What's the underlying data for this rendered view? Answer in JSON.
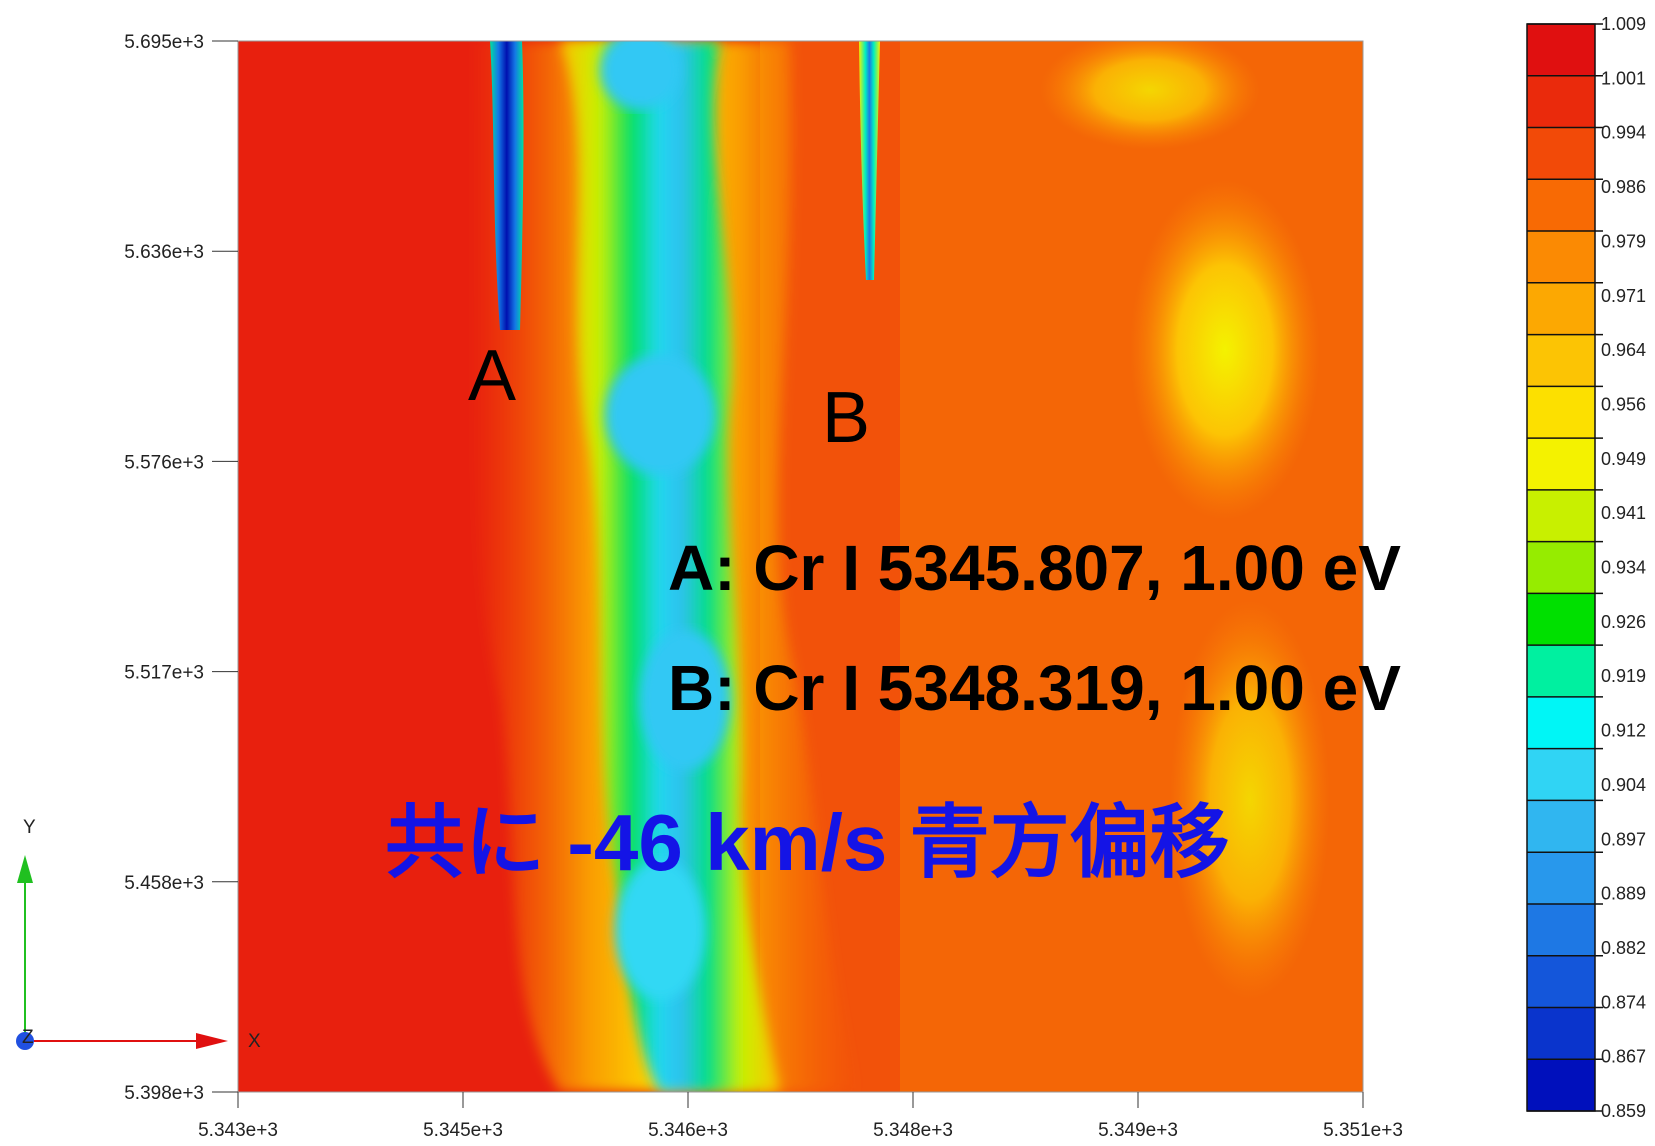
{
  "chart_data": {
    "type": "heatmap",
    "title": "",
    "xlabel": "",
    "ylabel": "",
    "x_ticks": [
      "5.343e+3",
      "5.345e+3",
      "5.346e+3",
      "5.348e+3",
      "5.349e+3",
      "5.351e+3"
    ],
    "y_ticks": [
      "5.695e+3",
      "5.636e+3",
      "5.576e+3",
      "5.517e+3",
      "5.458e+3",
      "5.398e+3"
    ],
    "xlim": [
      5343.0,
      5351.0
    ],
    "ylim": [
      5398.0,
      5695.0
    ],
    "colorbar": {
      "range": [
        0.859,
        1.009
      ],
      "labels": [
        "1.009",
        "1.001",
        "0.994",
        "0.986",
        "0.979",
        "0.971",
        "0.964",
        "0.956",
        "0.949",
        "0.941",
        "0.934",
        "0.926",
        "0.919",
        "0.912",
        "0.904",
        "0.897",
        "0.889",
        "0.882",
        "0.874",
        "0.867",
        "0.859"
      ],
      "colors": [
        "#e01010",
        "#ea2a0c",
        "#f24a08",
        "#f86a04",
        "#fb8a03",
        "#fca802",
        "#fcc404",
        "#fce000",
        "#f4f200",
        "#c8f000",
        "#96ec00",
        "#00e000",
        "#00f0a0",
        "#00f6f6",
        "#30d4f4",
        "#30b6f0",
        "#2898ec",
        "#1e78e4",
        "#1456da",
        "#0a34cc",
        "#0010bc"
      ]
    },
    "features": [
      {
        "name": "A",
        "x": 5344.8,
        "y_top": 5695,
        "y_bottom": 5618,
        "min_value": 0.859
      },
      {
        "name": "B",
        "x": 5347.4,
        "y_top": 5695,
        "y_bottom": 5630,
        "min_value": 0.889
      }
    ],
    "band": {
      "x_center_top": 5346.0,
      "x_center_bottom": 5346.1,
      "min_value": 0.904
    }
  },
  "axes": {
    "x_letter": "X",
    "y_letter": "Y",
    "z_letter": "Z"
  },
  "annotations": {
    "label_a": "A",
    "label_b": "B",
    "line_a": "A: Cr I 5345.807, 1.00 eV",
    "line_b": "B: Cr I 5348.319, 1.00 eV",
    "note": "共に  -46 km/s 青方偏移",
    "note_color": "#1414e6"
  }
}
